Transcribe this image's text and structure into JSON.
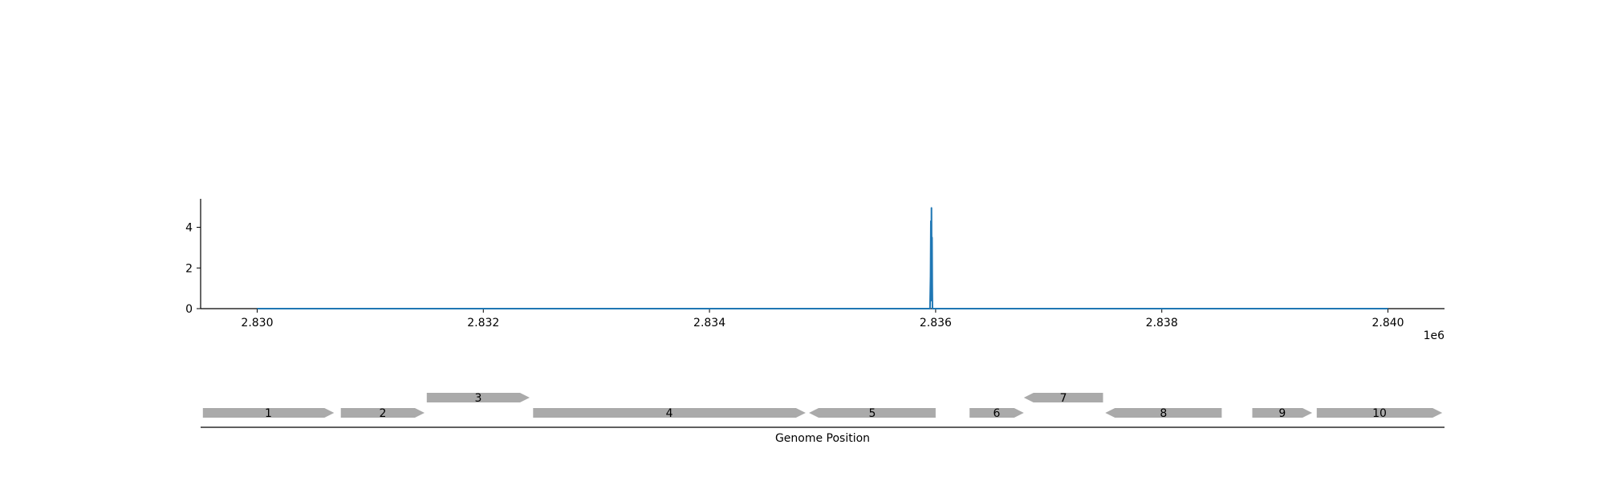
{
  "chart_data": {
    "type": "line",
    "title": "",
    "xlabel": "Genome Position",
    "ylabel": "",
    "x_offset_label": "1e6",
    "xlim": [
      2829500,
      2840500
    ],
    "ylim": [
      0,
      5.4
    ],
    "x_ticks": [
      2830000,
      2832000,
      2834000,
      2836000,
      2838000,
      2840000
    ],
    "x_tick_labels": [
      "2.830",
      "2.832",
      "2.834",
      "2.836",
      "2.838",
      "2.840"
    ],
    "y_ticks": [
      0,
      2,
      4
    ],
    "y_tick_labels": [
      "0",
      "2",
      "4"
    ],
    "grid": false,
    "series": [
      {
        "color": "#1f77b4",
        "points": [
          [
            2830000,
            0
          ],
          [
            2835950,
            0
          ],
          [
            2835955,
            1.6
          ],
          [
            2835958,
            4.3
          ],
          [
            2835961,
            0.4
          ],
          [
            2835963,
            4.95
          ],
          [
            2835966,
            0.9
          ],
          [
            2835968,
            3.5
          ],
          [
            2835970,
            1.2
          ],
          [
            2835972,
            0
          ],
          [
            2840000,
            0
          ]
        ]
      }
    ],
    "genes": [
      {
        "label": "1",
        "start": 2829520,
        "end": 2830680,
        "strand": "+",
        "row": 0
      },
      {
        "label": "2",
        "start": 2830740,
        "end": 2831480,
        "strand": "+",
        "row": 0
      },
      {
        "label": "3",
        "start": 2831500,
        "end": 2832410,
        "strand": "+",
        "row": 1
      },
      {
        "label": "4",
        "start": 2832440,
        "end": 2834850,
        "strand": "+",
        "row": 0
      },
      {
        "label": "5",
        "start": 2834880,
        "end": 2836000,
        "strand": "-",
        "row": 0
      },
      {
        "label": "6",
        "start": 2836300,
        "end": 2836780,
        "strand": "+",
        "row": 0
      },
      {
        "label": "7",
        "start": 2836780,
        "end": 2837480,
        "strand": "-",
        "row": 1
      },
      {
        "label": "8",
        "start": 2837500,
        "end": 2838530,
        "strand": "-",
        "row": 0
      },
      {
        "label": "9",
        "start": 2838800,
        "end": 2839330,
        "strand": "+",
        "row": 0
      },
      {
        "label": "10",
        "start": 2839370,
        "end": 2840480,
        "strand": "+",
        "row": 0
      }
    ],
    "gene_color": "#aaaaaa",
    "axis_color": "#000000"
  }
}
